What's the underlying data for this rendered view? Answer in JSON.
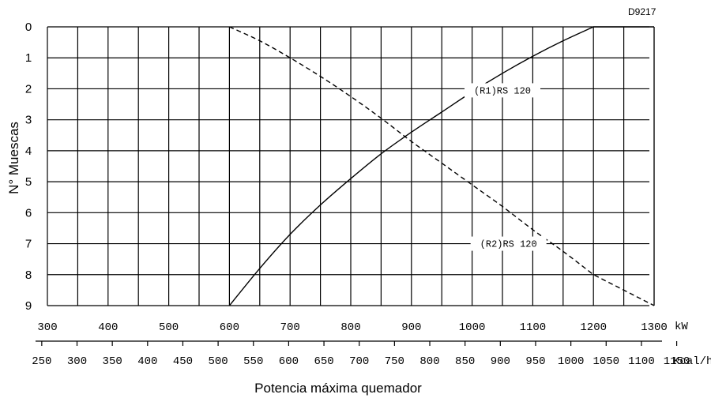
{
  "chart_data": {
    "type": "line",
    "code": "D9217",
    "ylabel": "N° Muescas",
    "xlabel": "Potencia máxima quemador",
    "ylim": [
      0,
      9
    ],
    "y_inverted": true,
    "y_ticks": [
      "0",
      "1",
      "2",
      "3",
      "4",
      "5",
      "6",
      "7",
      "8",
      "9"
    ],
    "xlim_kw": [
      300,
      1300
    ],
    "x_ticks_kw": [
      "300",
      "400",
      "500",
      "600",
      "700",
      "800",
      "900",
      "1000",
      "1100",
      "1200",
      "1300"
    ],
    "x_unit_kw": "kW",
    "x_ticks_kcal": [
      "250",
      "300",
      "350",
      "400",
      "450",
      "500",
      "550",
      "600",
      "650",
      "700",
      "750",
      "800",
      "850",
      "900",
      "950",
      "1000",
      "1050",
      "1100",
      "1150"
    ],
    "x_unit_kcal": "Kcal/h",
    "grid": true,
    "series": [
      {
        "name": "(R1)RS 120",
        "style": "solid",
        "x": [
          600,
          650,
          700,
          750,
          800,
          850,
          900,
          950,
          1000,
          1050,
          1100,
          1150,
          1200,
          1300
        ],
        "y": [
          9.0,
          7.8,
          6.7,
          5.75,
          4.9,
          4.1,
          3.4,
          2.75,
          2.1,
          1.5,
          0.95,
          0.45,
          0.0,
          0.0
        ]
      },
      {
        "name": "(R2)RS 120",
        "style": "dashed",
        "x": [
          600,
          650,
          700,
          750,
          800,
          850,
          900,
          950,
          1000,
          1050,
          1100,
          1150,
          1200,
          1300
        ],
        "y": [
          0.0,
          0.45,
          1.0,
          1.6,
          2.25,
          2.95,
          3.7,
          4.4,
          5.1,
          5.8,
          6.55,
          7.25,
          8.0,
          9.0
        ]
      }
    ]
  }
}
